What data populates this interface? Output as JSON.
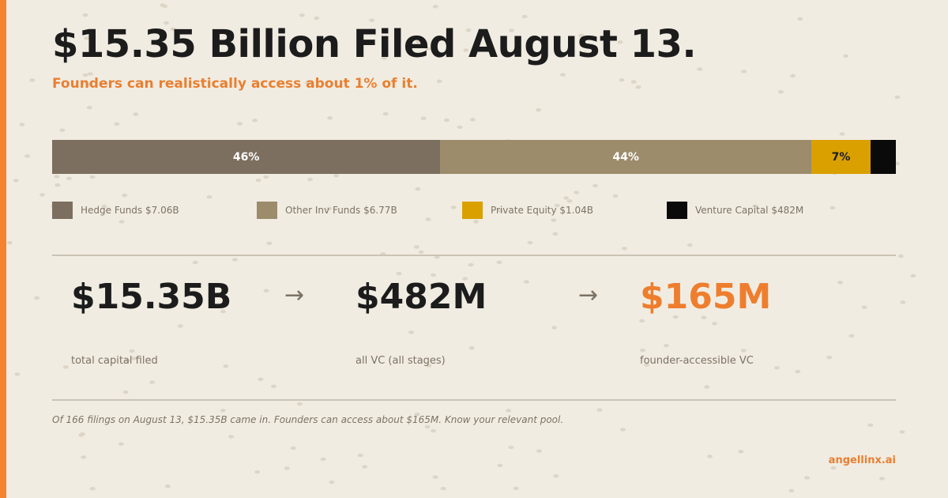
{
  "header": {
    "title": "$15.35 Billion Filed August 13.",
    "subtitle": "Founders can realistically access about 1% of it."
  },
  "breakdown": {
    "segments": [
      {
        "name": "Hedge Funds",
        "amount": "$7.06B",
        "share": 46,
        "label": "46%",
        "color": "#7c6f5f"
      },
      {
        "name": "Other Inv Funds",
        "amount": "$6.77B",
        "share": 44,
        "label": "44%",
        "color": "#9c8c6c"
      },
      {
        "name": "Private Equity",
        "amount": "$1.04B",
        "share": 7,
        "label": "7%",
        "color": "#d9a000"
      },
      {
        "name": "Venture Capital",
        "amount": "$482M",
        "share": 3,
        "label": "",
        "color": "#0a0a0a"
      }
    ]
  },
  "legend": [
    {
      "text": "Hedge Funds  $7.06B",
      "color": "#7c6f5f"
    },
    {
      "text": "Other Inv Funds  $6.77B",
      "color": "#9c8c6c"
    },
    {
      "text": "Private Equity  $1.04B",
      "color": "#d9a000"
    },
    {
      "text": "Venture Capital  $482M",
      "color": "#0a0a0a"
    }
  ],
  "funnel": {
    "arrow": "→",
    "total": {
      "value": "$15.35B",
      "caption": "total capital filed"
    },
    "vc": {
      "value": "$482M",
      "caption": "all VC (all stages)"
    },
    "founder": {
      "value": "$165M",
      "caption": "founder-accessible VC"
    }
  },
  "footnote": "Of 166 filings on August 13, $15.35B came in. Founders can access about $165M. Know your relevant pool.",
  "brand": "angellinx.ai",
  "colors": {
    "accent": "#f5822e",
    "background": "#f1ece2"
  }
}
